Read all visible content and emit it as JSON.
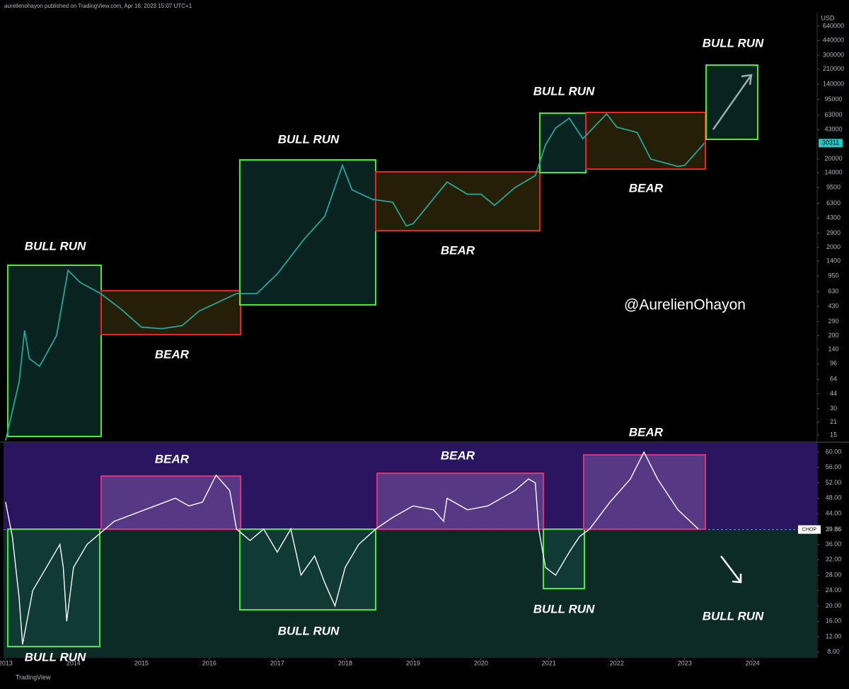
{
  "header": "aurelienohayon published on TradingView.com, Apr 16, 2023 15:07 UTC+1",
  "footer": "TradingView",
  "watermark": "@AurelienOhayon",
  "chart_data": [
    {
      "type": "line",
      "log": true,
      "y_unit": "USD",
      "color": "#26a69a",
      "last_value": 30311,
      "xlim": [
        2012.97,
        2024.95
      ],
      "ylim": [
        12.7,
        908000
      ],
      "yticks": [
        640000,
        440000,
        300000,
        210000,
        140000,
        95000,
        63000,
        43000,
        20000,
        14000,
        9500,
        6300,
        4300,
        2900,
        2000,
        1400,
        950,
        630,
        430,
        290,
        200,
        140,
        96,
        64,
        44,
        30,
        21,
        15
      ],
      "x": [
        2013.0,
        2013.2,
        2013.28,
        2013.35,
        2013.5,
        2013.75,
        2013.92,
        2014.1,
        2014.4,
        2014.7,
        2015.0,
        2015.3,
        2015.6,
        2015.85,
        2016.0,
        2016.4,
        2016.7,
        2017.0,
        2017.4,
        2017.7,
        2017.96,
        2018.1,
        2018.4,
        2018.7,
        2018.9,
        2019.0,
        2019.5,
        2019.8,
        2020.0,
        2020.2,
        2020.5,
        2020.8,
        2020.95,
        2021.1,
        2021.3,
        2021.5,
        2021.85,
        2022.0,
        2022.3,
        2022.5,
        2022.9,
        2023.0,
        2023.29
      ],
      "values": [
        13,
        60,
        230,
        110,
        90,
        200,
        1100,
        800,
        600,
        400,
        250,
        240,
        260,
        380,
        430,
        600,
        600,
        1000,
        2500,
        4500,
        17000,
        9000,
        7000,
        6500,
        3500,
        3700,
        11000,
        8000,
        8000,
        6000,
        9500,
        13000,
        29000,
        45000,
        58000,
        34000,
        65000,
        46000,
        40000,
        20000,
        16500,
        17000,
        30311
      ],
      "annotations": [
        "BULL RUN",
        "BEAR",
        "BULL RUN",
        "BEAR",
        "BULL RUN",
        "BEAR",
        "BULL RUN"
      ]
    },
    {
      "type": "line",
      "color": "#ffffff",
      "indicator": "CHOP",
      "last_value": 39.86,
      "xlim": [
        2012.97,
        2024.95
      ],
      "ylim": [
        6.5,
        62.4
      ],
      "xticks": [
        2013,
        2014,
        2015,
        2016,
        2017,
        2018,
        2019,
        2020,
        2021,
        2022,
        2023,
        2024
      ],
      "yticks": [
        {
          "value": 60,
          "label": "60.00"
        },
        {
          "value": 56,
          "label": "56.00"
        },
        {
          "value": 52,
          "label": "52.00"
        },
        {
          "value": 48,
          "label": "48.00"
        },
        {
          "value": 44,
          "label": "44.00"
        },
        {
          "value": 36,
          "label": "36.00"
        },
        {
          "value": 32,
          "label": "32.00"
        },
        {
          "value": 28,
          "label": "28.00"
        },
        {
          "value": 24,
          "label": "24.00"
        },
        {
          "value": 20,
          "label": "20.00"
        },
        {
          "value": 16,
          "label": "16.00"
        },
        {
          "value": 12,
          "label": "12.00"
        },
        {
          "value": 8,
          "label": "8.00"
        }
      ],
      "x": [
        2013.0,
        2013.1,
        2013.2,
        2013.25,
        2013.4,
        2013.6,
        2013.8,
        2013.85,
        2013.9,
        2014.0,
        2014.2,
        2014.4,
        2014.6,
        2014.9,
        2015.2,
        2015.5,
        2015.7,
        2015.9,
        2016.1,
        2016.3,
        2016.4,
        2016.6,
        2016.8,
        2017.0,
        2017.2,
        2017.35,
        2017.55,
        2017.7,
        2017.85,
        2018.0,
        2018.2,
        2018.45,
        2018.7,
        2019.0,
        2019.3,
        2019.45,
        2019.5,
        2019.8,
        2020.1,
        2020.5,
        2020.7,
        2020.8,
        2020.85,
        2020.95,
        2021.1,
        2021.3,
        2021.45,
        2021.6,
        2021.9,
        2022.2,
        2022.4,
        2022.6,
        2022.9,
        2023.2
      ],
      "values": [
        47,
        38,
        22,
        10,
        24,
        30,
        36,
        30,
        16,
        30,
        36,
        39,
        42,
        44,
        46,
        48,
        46,
        47,
        54,
        50,
        40,
        37,
        40,
        34,
        40,
        28,
        33,
        26,
        20,
        30,
        36,
        40,
        43,
        46,
        45,
        42,
        48,
        45,
        46,
        50,
        53,
        52,
        40,
        30,
        28,
        34,
        38,
        40,
        47,
        53,
        60,
        53,
        45,
        40
      ],
      "annotations": [
        "BEAR",
        "BEAR",
        "BEAR",
        "BULL RUN",
        "BULL RUN",
        "BULL RUN",
        "BULL RUN"
      ]
    }
  ]
}
